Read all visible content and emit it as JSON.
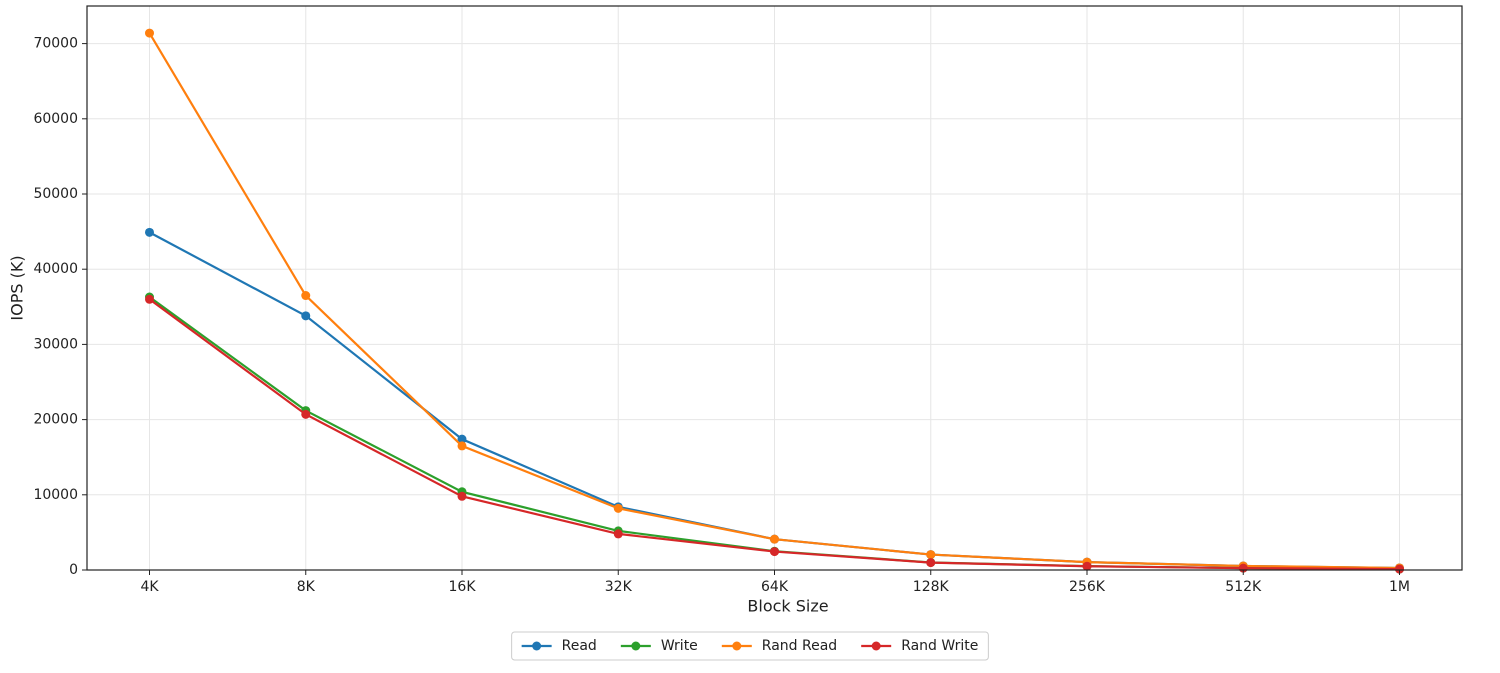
{
  "chart_data": {
    "type": "line",
    "x_label": "Block Size",
    "y_label": "IOPS (K)",
    "categories": [
      "4K",
      "8K",
      "16K",
      "32K",
      "64K",
      "128K",
      "256K",
      "512K",
      "1M"
    ],
    "series": [
      {
        "name": "Read",
        "color": "#1f77b4",
        "values": [
          44900,
          33800,
          17400,
          8400,
          4100,
          2050,
          1050,
          530,
          270
        ]
      },
      {
        "name": "Write",
        "color": "#2ca02c",
        "values": [
          36300,
          21200,
          10400,
          5200,
          2500,
          1000,
          520,
          260,
          130
        ]
      },
      {
        "name": "Rand Read",
        "color": "#ff7f0e",
        "values": [
          71400,
          36500,
          16500,
          8200,
          4100,
          2050,
          1050,
          540,
          270
        ]
      },
      {
        "name": "Rand Write",
        "color": "#d62728",
        "values": [
          36000,
          20700,
          9800,
          4800,
          2450,
          980,
          500,
          250,
          120
        ]
      }
    ],
    "ylim": [
      0,
      75000
    ],
    "yticks": [
      0,
      10000,
      20000,
      30000,
      40000,
      50000,
      60000,
      70000
    ],
    "grid": true,
    "legend": "bottom"
  }
}
